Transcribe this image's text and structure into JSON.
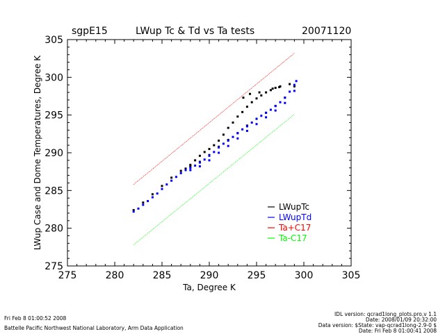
{
  "header": {
    "site": "sgpE15",
    "title": "LWup Tc & Td vs Ta tests",
    "date": "20071120"
  },
  "footer": {
    "left_line1": "Fri Feb  8 01:00:52 2008",
    "left_line2": "Battelle Pacific Northwest National Laboratory, Arm Data Application",
    "right_line1": "IDL version: qcrad1long_plots.pro,v 1.1",
    "right_line2": "Date: 2008/01/09 20:32:00",
    "right_line3": "Data version: $State: vap-qcrad1long-2.9-0 $",
    "right_line4": "Date: Fri Feb  8 01:00:41 2008"
  },
  "chart_data": {
    "type": "scatter",
    "title": "LWup Tc & Td vs Ta tests",
    "xlabel": "Ta, Degree K",
    "ylabel": "LWup Case and Dome Temperatures, Degree K",
    "xlim": [
      275,
      305
    ],
    "ylim": [
      275,
      305
    ],
    "xticks": [
      275,
      280,
      285,
      290,
      295,
      300,
      305
    ],
    "yticks": [
      275,
      280,
      285,
      290,
      295,
      300,
      305
    ],
    "legend_position": "bottom-right",
    "series": [
      {
        "name": "LWupTc",
        "color": "#000000",
        "marker": "dots",
        "points": [
          [
            282.0,
            282.4
          ],
          [
            283.0,
            283.4
          ],
          [
            284.0,
            284.5
          ],
          [
            285.0,
            285.6
          ],
          [
            286.0,
            286.7
          ],
          [
            287.0,
            287.6
          ],
          [
            287.5,
            287.9
          ],
          [
            288.0,
            288.4
          ],
          [
            288.5,
            289.0
          ],
          [
            289.0,
            289.6
          ],
          [
            289.5,
            290.1
          ],
          [
            290.0,
            290.5
          ],
          [
            290.5,
            291.0
          ],
          [
            291.0,
            291.6
          ],
          [
            291.5,
            292.4
          ],
          [
            292.0,
            293.3
          ],
          [
            292.5,
            294.0
          ],
          [
            293.0,
            294.8
          ],
          [
            293.5,
            295.4
          ],
          [
            294.0,
            296.1
          ],
          [
            294.5,
            296.7
          ],
          [
            295.0,
            297.2
          ],
          [
            295.5,
            297.6
          ],
          [
            296.0,
            298.0
          ],
          [
            296.5,
            298.3
          ],
          [
            297.0,
            298.6
          ],
          [
            297.5,
            298.8
          ],
          [
            288.0,
            288.2
          ],
          [
            289.0,
            288.8
          ],
          [
            290.0,
            289.7
          ],
          [
            291.0,
            290.8
          ],
          [
            292.0,
            291.7
          ],
          [
            293.0,
            292.6
          ],
          [
            294.0,
            293.6
          ],
          [
            295.0,
            294.5
          ],
          [
            296.0,
            295.3
          ],
          [
            297.0,
            296.2
          ],
          [
            298.0,
            297.3
          ],
          [
            299.0,
            298.8
          ],
          [
            293.6,
            297.3
          ],
          [
            294.3,
            297.8
          ],
          [
            295.3,
            298.0
          ],
          [
            296.7,
            298.5
          ],
          [
            297.4,
            298.7
          ],
          [
            298.5,
            299.1
          ]
        ]
      },
      {
        "name": "LWupTd",
        "color": "#0000ff",
        "marker": "dots",
        "points": [
          [
            282.0,
            282.2
          ],
          [
            282.5,
            282.6
          ],
          [
            283.0,
            283.1
          ],
          [
            283.5,
            283.6
          ],
          [
            284.0,
            284.1
          ],
          [
            284.5,
            284.6
          ],
          [
            285.0,
            285.2
          ],
          [
            285.5,
            285.8
          ],
          [
            286.0,
            286.3
          ],
          [
            286.5,
            286.8
          ],
          [
            287.0,
            287.3
          ],
          [
            287.5,
            287.7
          ],
          [
            288.0,
            288.0
          ],
          [
            288.5,
            288.3
          ],
          [
            289.0,
            288.7
          ],
          [
            289.5,
            289.1
          ],
          [
            290.0,
            289.6
          ],
          [
            290.5,
            290.1
          ],
          [
            291.0,
            290.7
          ],
          [
            291.5,
            291.2
          ],
          [
            292.0,
            291.6
          ],
          [
            292.5,
            292.1
          ],
          [
            293.0,
            292.6
          ],
          [
            293.5,
            293.1
          ],
          [
            294.0,
            293.5
          ],
          [
            294.5,
            294.0
          ],
          [
            295.0,
            294.5
          ],
          [
            295.5,
            294.9
          ],
          [
            296.0,
            295.3
          ],
          [
            296.5,
            295.7
          ],
          [
            297.0,
            296.2
          ],
          [
            297.5,
            296.7
          ],
          [
            298.0,
            297.3
          ],
          [
            298.5,
            298.1
          ],
          [
            299.0,
            299.0
          ],
          [
            299.2,
            299.5
          ],
          [
            288.0,
            287.7
          ],
          [
            289.0,
            288.2
          ],
          [
            290.0,
            289.0
          ],
          [
            291.0,
            290.0
          ],
          [
            292.0,
            290.9
          ],
          [
            293.0,
            291.9
          ],
          [
            294.0,
            292.9
          ],
          [
            295.0,
            293.8
          ],
          [
            296.0,
            294.7
          ],
          [
            297.0,
            295.6
          ],
          [
            298.0,
            296.6
          ],
          [
            299.0,
            298.2
          ]
        ]
      },
      {
        "name": "Ta+C17",
        "color": "#ff0000",
        "marker": "line",
        "points": [
          [
            282.0,
            285.8
          ],
          [
            299.0,
            303.2
          ]
        ]
      },
      {
        "name": "Ta-C17",
        "color": "#00ff00",
        "marker": "line",
        "points": [
          [
            282.0,
            277.8
          ],
          [
            299.0,
            295.1
          ]
        ]
      }
    ]
  }
}
